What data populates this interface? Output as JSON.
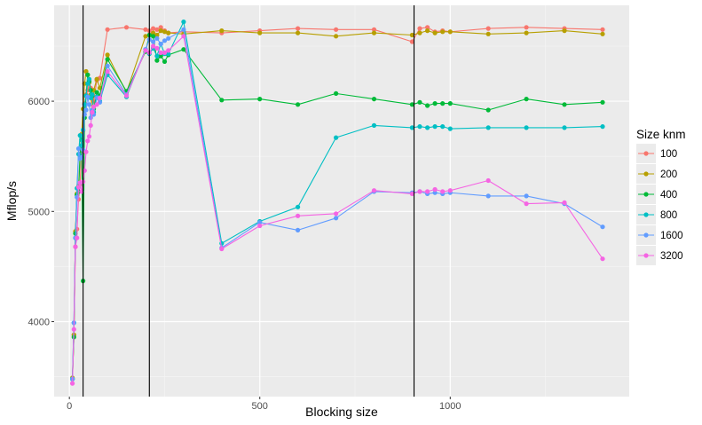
{
  "chart_data": {
    "type": "line",
    "xlabel": "Blocking size",
    "ylabel": "Mflop/s",
    "xlim": [
      -40,
      1470
    ],
    "ylim": [
      3320,
      6870
    ],
    "x_ticks": [
      0,
      500,
      1000
    ],
    "y_ticks": [
      4000,
      5000,
      6000
    ],
    "grid": true,
    "legend": {
      "title": "Size knm",
      "position": "right"
    },
    "vlines": [
      36,
      210,
      905
    ],
    "series": [
      {
        "name": "100",
        "color": "#F8766D",
        "points": [
          [
            8,
            3480
          ],
          [
            12,
            3880
          ],
          [
            16,
            4680
          ],
          [
            20,
            4840
          ],
          [
            24,
            5110
          ],
          [
            28,
            5250
          ],
          [
            32,
            5530
          ],
          [
            36,
            5730
          ],
          [
            40,
            5980
          ],
          [
            44,
            6060
          ],
          [
            48,
            6100
          ],
          [
            52,
            6190
          ],
          [
            56,
            6120
          ],
          [
            60,
            6040
          ],
          [
            64,
            6000
          ],
          [
            72,
            6190
          ],
          [
            80,
            6210
          ],
          [
            100,
            6650
          ],
          [
            150,
            6670
          ],
          [
            200,
            6650
          ],
          [
            210,
            6640
          ],
          [
            220,
            6660
          ],
          [
            230,
            6650
          ],
          [
            240,
            6670
          ],
          [
            250,
            6640
          ],
          [
            260,
            6620
          ],
          [
            300,
            6630
          ],
          [
            400,
            6620
          ],
          [
            500,
            6640
          ],
          [
            600,
            6660
          ],
          [
            700,
            6650
          ],
          [
            800,
            6650
          ],
          [
            900,
            6540
          ],
          [
            920,
            6660
          ],
          [
            940,
            6670
          ],
          [
            960,
            6630
          ],
          [
            980,
            6640
          ],
          [
            1000,
            6630
          ],
          [
            1100,
            6660
          ],
          [
            1200,
            6670
          ],
          [
            1300,
            6660
          ],
          [
            1400,
            6650
          ]
        ]
      },
      {
        "name": "200",
        "color": "#B79F00",
        "points": [
          [
            8,
            3490
          ],
          [
            12,
            3880
          ],
          [
            16,
            4820
          ],
          [
            20,
            5160
          ],
          [
            24,
            5230
          ],
          [
            28,
            5500
          ],
          [
            32,
            5700
          ],
          [
            36,
            5930
          ],
          [
            40,
            6160
          ],
          [
            44,
            6270
          ],
          [
            48,
            6240
          ],
          [
            52,
            6170
          ],
          [
            56,
            6060
          ],
          [
            60,
            5890
          ],
          [
            64,
            6100
          ],
          [
            72,
            6200
          ],
          [
            80,
            6120
          ],
          [
            100,
            6420
          ],
          [
            150,
            6080
          ],
          [
            200,
            6590
          ],
          [
            210,
            6600
          ],
          [
            220,
            6620
          ],
          [
            230,
            6600
          ],
          [
            240,
            6640
          ],
          [
            250,
            6630
          ],
          [
            260,
            6620
          ],
          [
            300,
            6610
          ],
          [
            400,
            6640
          ],
          [
            500,
            6620
          ],
          [
            600,
            6620
          ],
          [
            700,
            6590
          ],
          [
            800,
            6620
          ],
          [
            900,
            6600
          ],
          [
            920,
            6620
          ],
          [
            940,
            6640
          ],
          [
            960,
            6620
          ],
          [
            980,
            6630
          ],
          [
            1000,
            6630
          ],
          [
            1100,
            6610
          ],
          [
            1200,
            6620
          ],
          [
            1300,
            6640
          ],
          [
            1400,
            6610
          ]
        ]
      },
      {
        "name": "400",
        "color": "#00BA38",
        "points": [
          [
            8,
            3480
          ],
          [
            12,
            3860
          ],
          [
            16,
            4800
          ],
          [
            20,
            5150
          ],
          [
            24,
            5180
          ],
          [
            28,
            5500
          ],
          [
            32,
            5650
          ],
          [
            36,
            4370
          ],
          [
            40,
            5850
          ],
          [
            44,
            6050
          ],
          [
            48,
            6240
          ],
          [
            52,
            6180
          ],
          [
            56,
            6100
          ],
          [
            60,
            6050
          ],
          [
            64,
            5930
          ],
          [
            72,
            6080
          ],
          [
            80,
            6050
          ],
          [
            100,
            6380
          ],
          [
            150,
            6090
          ],
          [
            200,
            6450
          ],
          [
            210,
            6600
          ],
          [
            220,
            6590
          ],
          [
            230,
            6370
          ],
          [
            240,
            6410
          ],
          [
            250,
            6360
          ],
          [
            260,
            6420
          ],
          [
            300,
            6470
          ],
          [
            400,
            6010
          ],
          [
            500,
            6020
          ],
          [
            600,
            5970
          ],
          [
            700,
            6070
          ],
          [
            800,
            6020
          ],
          [
            900,
            5970
          ],
          [
            920,
            5990
          ],
          [
            940,
            5960
          ],
          [
            960,
            5980
          ],
          [
            980,
            5980
          ],
          [
            1000,
            5980
          ],
          [
            1100,
            5920
          ],
          [
            1200,
            6020
          ],
          [
            1300,
            5970
          ],
          [
            1400,
            5990
          ]
        ]
      },
      {
        "name": "800",
        "color": "#00BFC4",
        "points": [
          [
            8,
            3480
          ],
          [
            12,
            3990
          ],
          [
            16,
            4760
          ],
          [
            20,
            5210
          ],
          [
            24,
            5520
          ],
          [
            28,
            5690
          ],
          [
            32,
            5600
          ],
          [
            36,
            5740
          ],
          [
            40,
            5970
          ],
          [
            44,
            6050
          ],
          [
            48,
            6160
          ],
          [
            52,
            6200
          ],
          [
            56,
            6030
          ],
          [
            60,
            6060
          ],
          [
            64,
            5900
          ],
          [
            72,
            6040
          ],
          [
            80,
            6000
          ],
          [
            100,
            6240
          ],
          [
            150,
            6040
          ],
          [
            200,
            6470
          ],
          [
            210,
            6430
          ],
          [
            220,
            6480
          ],
          [
            230,
            6410
          ],
          [
            240,
            6520
          ],
          [
            250,
            6430
          ],
          [
            260,
            6430
          ],
          [
            300,
            6720
          ],
          [
            400,
            4710
          ],
          [
            500,
            4910
          ],
          [
            600,
            5040
          ],
          [
            700,
            5670
          ],
          [
            800,
            5780
          ],
          [
            900,
            5760
          ],
          [
            920,
            5770
          ],
          [
            940,
            5760
          ],
          [
            960,
            5770
          ],
          [
            980,
            5770
          ],
          [
            1000,
            5750
          ],
          [
            1100,
            5760
          ],
          [
            1200,
            5760
          ],
          [
            1300,
            5760
          ],
          [
            1400,
            5770
          ]
        ]
      },
      {
        "name": "1600",
        "color": "#619CFF",
        "points": [
          [
            8,
            3480
          ],
          [
            12,
            3990
          ],
          [
            16,
            4760
          ],
          [
            20,
            5130
          ],
          [
            24,
            5570
          ],
          [
            28,
            5480
          ],
          [
            32,
            5490
          ],
          [
            36,
            5560
          ],
          [
            40,
            5880
          ],
          [
            44,
            5920
          ],
          [
            48,
            6040
          ],
          [
            52,
            5970
          ],
          [
            56,
            5850
          ],
          [
            60,
            5920
          ],
          [
            64,
            5880
          ],
          [
            72,
            6030
          ],
          [
            80,
            5990
          ],
          [
            100,
            6320
          ],
          [
            150,
            6060
          ],
          [
            200,
            6470
          ],
          [
            210,
            6560
          ],
          [
            220,
            6540
          ],
          [
            230,
            6570
          ],
          [
            240,
            6520
          ],
          [
            250,
            6550
          ],
          [
            260,
            6570
          ],
          [
            300,
            6650
          ],
          [
            400,
            4670
          ],
          [
            500,
            4900
          ],
          [
            600,
            4830
          ],
          [
            700,
            4940
          ],
          [
            800,
            5180
          ],
          [
            900,
            5170
          ],
          [
            920,
            5180
          ],
          [
            940,
            5160
          ],
          [
            960,
            5170
          ],
          [
            980,
            5160
          ],
          [
            1000,
            5170
          ],
          [
            1100,
            5140
          ],
          [
            1200,
            5140
          ],
          [
            1300,
            5070
          ],
          [
            1400,
            4860
          ]
        ]
      },
      {
        "name": "3200",
        "color": "#F564E3",
        "points": [
          [
            8,
            3440
          ],
          [
            12,
            3930
          ],
          [
            16,
            4680
          ],
          [
            20,
            4760
          ],
          [
            24,
            5220
          ],
          [
            28,
            5260
          ],
          [
            32,
            5180
          ],
          [
            36,
            5270
          ],
          [
            40,
            5370
          ],
          [
            44,
            5540
          ],
          [
            48,
            5640
          ],
          [
            52,
            5680
          ],
          [
            56,
            5780
          ],
          [
            60,
            5900
          ],
          [
            64,
            5950
          ],
          [
            72,
            5970
          ],
          [
            80,
            6030
          ],
          [
            100,
            6270
          ],
          [
            150,
            6050
          ],
          [
            200,
            6460
          ],
          [
            210,
            6440
          ],
          [
            220,
            6500
          ],
          [
            230,
            6480
          ],
          [
            240,
            6440
          ],
          [
            250,
            6440
          ],
          [
            260,
            6460
          ],
          [
            300,
            6590
          ],
          [
            400,
            4660
          ],
          [
            500,
            4870
          ],
          [
            600,
            4960
          ],
          [
            700,
            4980
          ],
          [
            800,
            5190
          ],
          [
            900,
            5160
          ],
          [
            920,
            5180
          ],
          [
            940,
            5180
          ],
          [
            960,
            5200
          ],
          [
            980,
            5180
          ],
          [
            1000,
            5190
          ],
          [
            1100,
            5280
          ],
          [
            1200,
            5070
          ],
          [
            1300,
            5080
          ],
          [
            1400,
            4570
          ]
        ]
      }
    ]
  }
}
